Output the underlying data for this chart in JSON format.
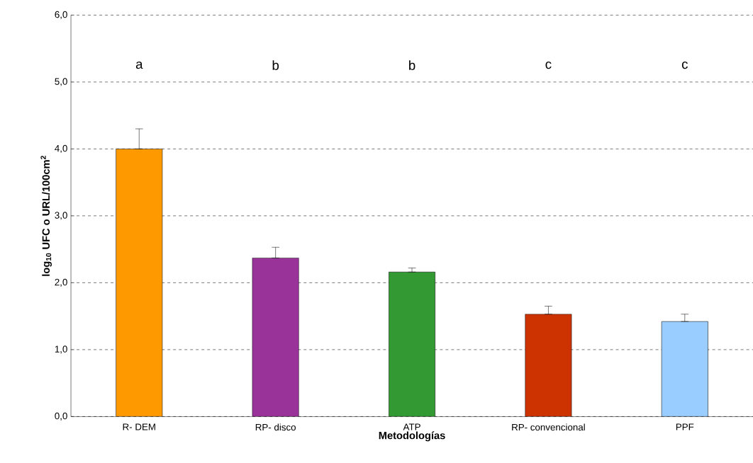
{
  "chart_data": {
    "type": "bar",
    "xlabel": "Metodologías",
    "ylabel": "log$_{10}$ UFC o URL/100cm$^{2}$",
    "categories": [
      "R- DEM",
      "RP- disco",
      "ATP",
      "RP- convencional",
      "PPF"
    ],
    "values": [
      4.0,
      2.37,
      2.16,
      1.53,
      1.42
    ],
    "colors": [
      "#ff9900",
      "#993399",
      "#339933",
      "#cc3300",
      "#99ccff"
    ],
    "errors": [
      [
        4.0,
        4.3
      ],
      [
        2.37,
        2.53
      ],
      [
        2.16,
        2.22
      ],
      [
        1.53,
        1.65
      ],
      [
        1.42,
        1.53
      ]
    ],
    "ylim": [
      0,
      6
    ],
    "yticks": [
      {
        "value": 0,
        "label": "0,0"
      },
      {
        "value": 1,
        "label": "1,0"
      },
      {
        "value": 2,
        "label": "2,0"
      },
      {
        "value": 3,
        "label": "3,0"
      },
      {
        "value": 4,
        "label": "4,0"
      },
      {
        "value": 5,
        "label": "5,0"
      },
      {
        "value": 6,
        "label": "6,0"
      }
    ],
    "grid": "y",
    "line_style": "dashed",
    "annotations": [
      "a",
      "b",
      "b",
      "c",
      "c"
    ]
  }
}
